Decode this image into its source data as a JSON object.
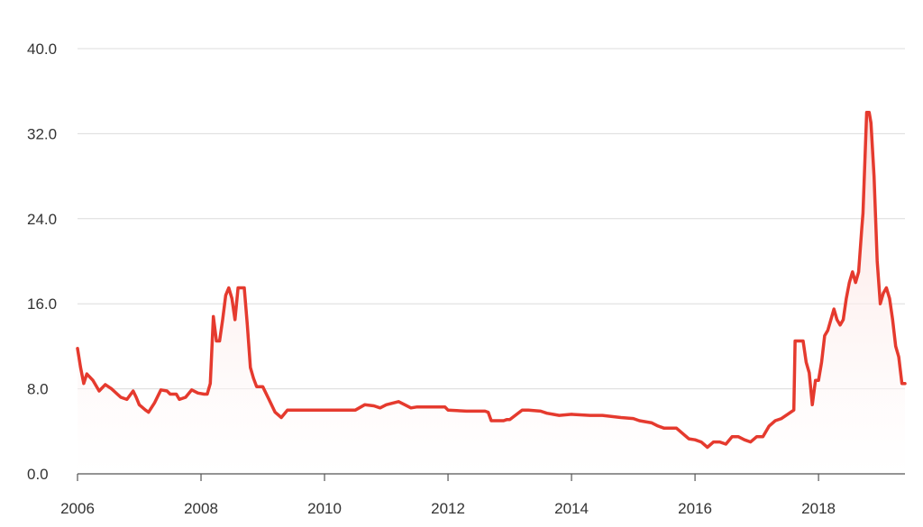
{
  "chart_data": {
    "type": "area",
    "title": "",
    "xlabel": "",
    "ylabel": "",
    "xlim": [
      2006,
      2019.4
    ],
    "ylim": [
      0,
      40
    ],
    "x_ticks": [
      2006,
      2008,
      2010,
      2012,
      2014,
      2016,
      2018
    ],
    "x_tick_labels": [
      "2006",
      "2008",
      "2010",
      "2012",
      "2014",
      "2016",
      "2018"
    ],
    "y_ticks": [
      0,
      8,
      16,
      24,
      32,
      40
    ],
    "y_tick_labels": [
      "0.0",
      "8.0",
      "16.0",
      "24.0",
      "32.0",
      "40.0"
    ],
    "grid": true,
    "legend": "none",
    "colors": {
      "line": "#e53a2e",
      "fill_top": "#fbd9d6",
      "fill_bottom": "#ffffff"
    },
    "series": [
      {
        "x": [
          2006.0,
          2006.05,
          2006.1,
          2006.15,
          2006.25,
          2006.35,
          2006.45,
          2006.55,
          2006.7,
          2006.8,
          2006.9,
          2006.95,
          2007.0,
          2007.1,
          2007.15,
          2007.25,
          2007.35,
          2007.45,
          2007.5,
          2007.6,
          2007.65,
          2007.75,
          2007.85,
          2007.95,
          2008.05,
          2008.1,
          2008.15,
          2008.2,
          2008.25,
          2008.3,
          2008.35,
          2008.4,
          2008.45,
          2008.5,
          2008.55,
          2008.6,
          2008.65,
          2008.7,
          2008.75,
          2008.8,
          2008.85,
          2008.9,
          2009.0,
          2009.1,
          2009.2,
          2009.3,
          2009.4,
          2009.5,
          2009.7,
          2010.0,
          2010.5,
          2010.65,
          2010.8,
          2010.9,
          2011.0,
          2011.2,
          2011.3,
          2011.4,
          2011.5,
          2011.7,
          2011.95,
          2012.0,
          2012.3,
          2012.6,
          2012.65,
          2012.7,
          2012.9,
          2012.95,
          2013.0,
          2013.2,
          2013.3,
          2013.5,
          2013.6,
          2013.7,
          2013.8,
          2014.0,
          2014.3,
          2014.5,
          2014.8,
          2015.0,
          2015.1,
          2015.3,
          2015.4,
          2015.5,
          2015.7,
          2015.9,
          2016.0,
          2016.1,
          2016.2,
          2016.3,
          2016.4,
          2016.5,
          2016.6,
          2016.7,
          2016.8,
          2016.9,
          2017.0,
          2017.1,
          2017.2,
          2017.3,
          2017.4,
          2017.5,
          2017.6,
          2017.62,
          2017.75,
          2017.8,
          2017.85,
          2017.9,
          2017.95,
          2018.0,
          2018.05,
          2018.1,
          2018.15,
          2018.2,
          2018.25,
          2018.3,
          2018.35,
          2018.4,
          2018.45,
          2018.5,
          2018.55,
          2018.6,
          2018.65,
          2018.7,
          2018.72,
          2018.78,
          2018.82,
          2018.85,
          2018.9,
          2018.95,
          2019.0,
          2019.05,
          2019.1,
          2019.15,
          2019.2,
          2019.25,
          2019.3,
          2019.35,
          2019.4
        ],
        "values": [
          11.8,
          10.0,
          8.5,
          9.4,
          8.8,
          7.8,
          8.4,
          8.0,
          7.2,
          7.0,
          7.8,
          7.2,
          6.5,
          6.0,
          5.8,
          6.7,
          7.9,
          7.8,
          7.5,
          7.5,
          7.0,
          7.2,
          7.9,
          7.6,
          7.5,
          7.5,
          8.5,
          14.8,
          12.5,
          12.5,
          14.5,
          16.8,
          17.5,
          16.5,
          14.5,
          17.5,
          17.5,
          17.5,
          14.0,
          10.0,
          9.0,
          8.2,
          8.2,
          7.0,
          5.8,
          5.3,
          6.0,
          6.0,
          6.0,
          6.0,
          6.0,
          6.5,
          6.4,
          6.2,
          6.5,
          6.8,
          6.5,
          6.2,
          6.3,
          6.3,
          6.3,
          6.0,
          5.9,
          5.9,
          5.8,
          5.0,
          5.0,
          5.1,
          5.1,
          6.0,
          6.0,
          5.9,
          5.7,
          5.6,
          5.5,
          5.6,
          5.5,
          5.5,
          5.3,
          5.2,
          5.0,
          4.8,
          4.5,
          4.3,
          4.3,
          3.3,
          3.2,
          3.0,
          2.5,
          3.0,
          3.0,
          2.8,
          3.5,
          3.5,
          3.2,
          3.0,
          3.5,
          3.5,
          4.5,
          5.0,
          5.2,
          5.6,
          6.0,
          12.5,
          12.5,
          10.5,
          9.5,
          6.5,
          8.8,
          8.8,
          10.5,
          13.0,
          13.5,
          14.5,
          15.5,
          14.5,
          14.0,
          14.5,
          16.5,
          18.0,
          19.0,
          18.0,
          19.0,
          23.0,
          24.5,
          34.0,
          34.0,
          33.0,
          28.0,
          20.0,
          16.0,
          17.0,
          17.5,
          16.5,
          14.5,
          12.0,
          11.0,
          8.5,
          8.5
        ]
      }
    ]
  }
}
